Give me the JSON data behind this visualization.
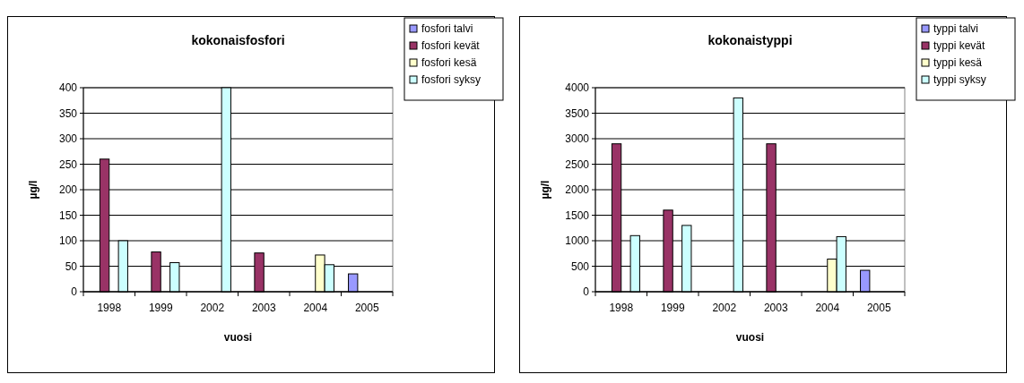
{
  "chart_data": [
    {
      "type": "bar",
      "title": "kokonaisfosfori",
      "xlabel": "vuosi",
      "ylabel": "µg/l",
      "categories": [
        "1998",
        "1999",
        "2002",
        "2003",
        "2004",
        "2005"
      ],
      "ylim": [
        0,
        400
      ],
      "yticks": [
        0,
        50,
        100,
        150,
        200,
        250,
        300,
        350,
        400
      ],
      "grid": "y",
      "legend": "top right",
      "series": [
        {
          "name": "fosfori talvi",
          "color": "#9999ff",
          "values": [
            null,
            null,
            null,
            null,
            null,
            35
          ]
        },
        {
          "name": "fosfori kevät",
          "color": "#993366",
          "values": [
            260,
            78,
            null,
            76,
            null,
            null
          ]
        },
        {
          "name": "fosfori kesä",
          "color": "#ffffcc",
          "values": [
            null,
            null,
            null,
            null,
            72,
            null
          ]
        },
        {
          "name": "fosfori syksy",
          "color": "#ccffff",
          "values": [
            100,
            57,
            400,
            null,
            53,
            null
          ]
        }
      ]
    },
    {
      "type": "bar",
      "title": "kokonaistyppi",
      "xlabel": "vuosi",
      "ylabel": "µg/l",
      "categories": [
        "1998",
        "1999",
        "2002",
        "2003",
        "2004",
        "2005"
      ],
      "ylim": [
        0,
        4000
      ],
      "yticks": [
        0,
        500,
        1000,
        1500,
        2000,
        2500,
        3000,
        3500,
        4000
      ],
      "grid": "y",
      "legend": "top right",
      "series": [
        {
          "name": "typpi talvi",
          "color": "#9999ff",
          "values": [
            null,
            null,
            null,
            null,
            null,
            420
          ]
        },
        {
          "name": "typpi kevät",
          "color": "#993366",
          "values": [
            2900,
            1600,
            null,
            2900,
            null,
            null
          ]
        },
        {
          "name": "typpi kesä",
          "color": "#ffffcc",
          "values": [
            null,
            null,
            null,
            null,
            640,
            null
          ]
        },
        {
          "name": "typpi syksy",
          "color": "#ccffff",
          "values": [
            1100,
            1300,
            3800,
            null,
            1080,
            null
          ]
        }
      ]
    }
  ]
}
